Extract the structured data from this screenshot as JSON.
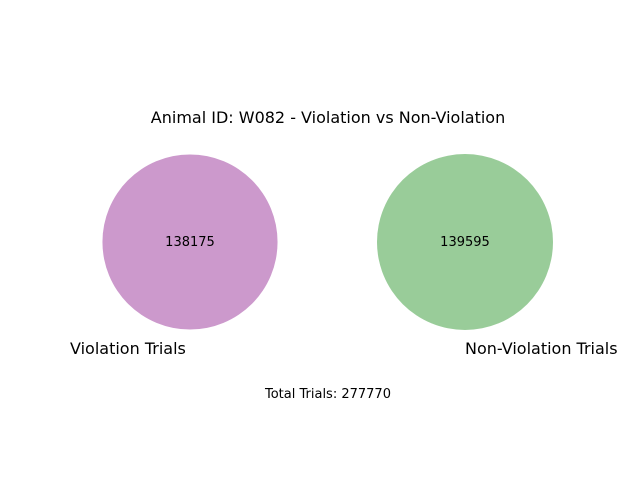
{
  "chart_data": {
    "type": "venn",
    "title": "Animal ID: W082 - Violation vs Non-Violation",
    "sets": [
      {
        "name": "Violation Trials",
        "value": 138175,
        "color": "#cc99cc"
      },
      {
        "name": "Non-Violation Trials",
        "value": 139595,
        "color": "#99cc99"
      }
    ],
    "intersection": 0,
    "footer": "Total Trials: 277770"
  }
}
